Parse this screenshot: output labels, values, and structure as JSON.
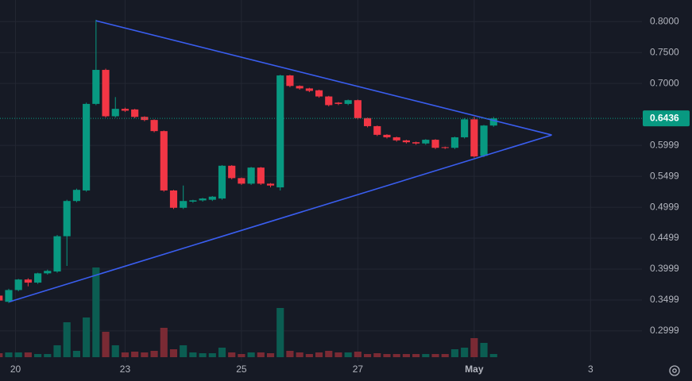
{
  "chart_data": {
    "type": "candlestick",
    "open": [
      0.357,
      0.347,
      0.366,
      0.383,
      0.378,
      0.393,
      0.396,
      0.453,
      0.51,
      0.527,
      0.667,
      0.722,
      0.647,
      0.659,
      0.658,
      0.646,
      0.641,
      0.623,
      0.527,
      0.499,
      0.509,
      0.511,
      0.512,
      0.514,
      0.567,
      0.547,
      0.538,
      0.564,
      0.538,
      0.532,
      0.713,
      0.696,
      0.692,
      0.689,
      0.679,
      0.669,
      0.667,
      0.673,
      0.644,
      0.631,
      0.617,
      0.613,
      0.608,
      0.605,
      0.603,
      0.609,
      0.597,
      0.596,
      0.613,
      0.642,
      0.583,
      0.632
    ],
    "high": [
      0.359,
      0.368,
      0.384,
      0.385,
      0.394,
      0.399,
      0.455,
      0.512,
      0.53,
      0.669,
      0.803,
      0.724,
      0.678,
      0.661,
      0.659,
      0.647,
      0.642,
      0.624,
      0.528,
      0.535,
      0.512,
      0.515,
      0.518,
      0.568,
      0.568,
      0.548,
      0.565,
      0.565,
      0.539,
      0.714,
      0.714,
      0.697,
      0.693,
      0.69,
      0.68,
      0.67,
      0.674,
      0.674,
      0.645,
      0.632,
      0.618,
      0.614,
      0.609,
      0.606,
      0.61,
      0.61,
      0.598,
      0.614,
      0.644,
      0.646,
      0.633,
      0.646
    ],
    "low": [
      0.347,
      0.345,
      0.364,
      0.372,
      0.376,
      0.391,
      0.394,
      0.405,
      0.508,
      0.525,
      0.665,
      0.645,
      0.645,
      0.654,
      0.644,
      0.639,
      0.621,
      0.525,
      0.497,
      0.497,
      0.507,
      0.509,
      0.51,
      0.512,
      0.545,
      0.536,
      0.536,
      0.536,
      0.532,
      0.527,
      0.694,
      0.69,
      0.686,
      0.677,
      0.663,
      0.665,
      0.665,
      0.642,
      0.629,
      0.615,
      0.611,
      0.606,
      0.603,
      0.601,
      0.601,
      0.594,
      0.594,
      0.594,
      0.611,
      0.58,
      0.581,
      0.63
    ],
    "close": [
      0.349,
      0.366,
      0.383,
      0.378,
      0.393,
      0.397,
      0.453,
      0.51,
      0.528,
      0.667,
      0.722,
      0.647,
      0.659,
      0.656,
      0.646,
      0.641,
      0.623,
      0.527,
      0.499,
      0.51,
      0.511,
      0.514,
      0.517,
      0.567,
      0.547,
      0.538,
      0.564,
      0.538,
      0.535,
      0.713,
      0.696,
      0.692,
      0.688,
      0.679,
      0.665,
      0.667,
      0.673,
      0.644,
      0.631,
      0.617,
      0.613,
      0.608,
      0.605,
      0.603,
      0.609,
      0.596,
      0.596,
      0.613,
      0.642,
      0.582,
      0.632,
      0.6436
    ],
    "volume": [
      5,
      6,
      6,
      6,
      4,
      4,
      15,
      44,
      8,
      50,
      113,
      32,
      15,
      6,
      7,
      6,
      8,
      37,
      10,
      15,
      6,
      5,
      5,
      12,
      6,
      4,
      6,
      6,
      5,
      62,
      8,
      6,
      4,
      6,
      8,
      6,
      6,
      7,
      4,
      5,
      4,
      4,
      4,
      4,
      4,
      4,
      4,
      10,
      12,
      24,
      18,
      4
    ],
    "up_color": "#089981",
    "down_color": "#f23645",
    "volume_up_color": "#0b5d52",
    "volume_down_color": "#7a2a34",
    "trend_color": "#3a5ef0",
    "trendlines": [
      [
        [
          10,
          0.8015
        ],
        [
          57,
          0.6167
        ]
      ],
      [
        [
          1.06,
          0.347
        ],
        [
          57,
          0.6167
        ]
      ]
    ],
    "last_price": 0.6436,
    "xlim": [
      0.1,
      66.3
    ],
    "xticks": [
      {
        "value": 1.7,
        "label": "20"
      },
      {
        "value": 13,
        "label": "23"
      },
      {
        "value": 25,
        "label": "25"
      },
      {
        "value": 37,
        "label": "27"
      },
      {
        "value": 49,
        "label": "May"
      },
      {
        "value": 61,
        "label": "3"
      }
    ],
    "ylim": [
      0.251,
      0.835
    ],
    "yticks": [
      {
        "value": 0.8,
        "label": "0.8000"
      },
      {
        "value": 0.75,
        "label": "0.7500"
      },
      {
        "value": 0.7,
        "label": "0.7000"
      },
      0.5999,
      0.5499,
      0.4999,
      0.4499,
      0.3999,
      0.3499,
      0.2999
    ],
    "grid": true
  }
}
